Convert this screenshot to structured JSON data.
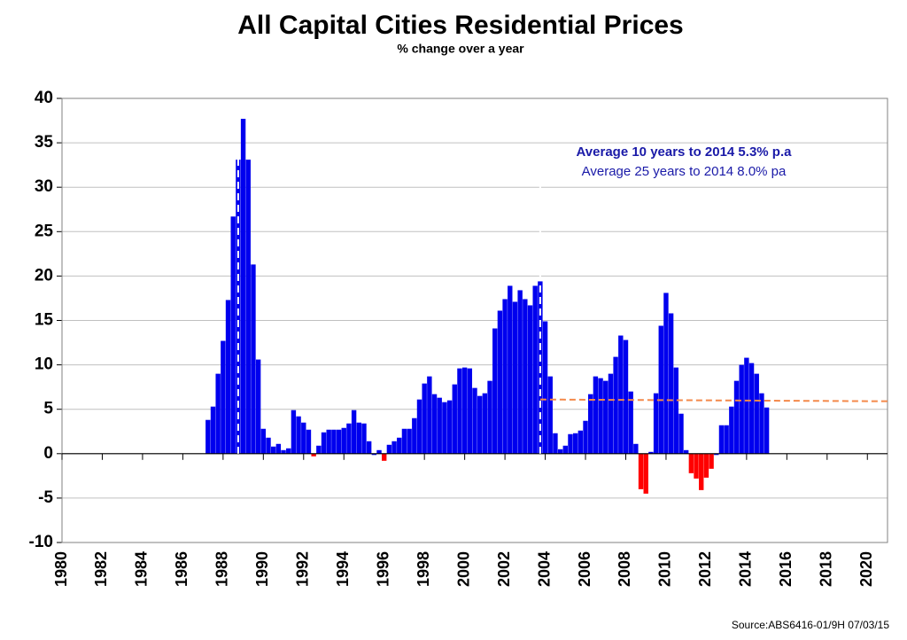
{
  "chart_data": {
    "type": "bar",
    "title": "All Capital Cities Residential Prices",
    "subtitle": "% change over a year",
    "annotations": [
      "Average 10 years to 2014  5.3% p.a",
      "Average 25 years to 2014  8.0% pa"
    ],
    "source": "Source:ABS6416-01/9H 07/03/15",
    "positive_color": "#0000ee",
    "negative_color": "#ff0000",
    "x": [
      1987.25,
      1987.5,
      1987.75,
      1988,
      1988.25,
      1988.5,
      1988.75,
      1989,
      1989.25,
      1989.5,
      1989.75,
      1990,
      1990.25,
      1990.5,
      1990.75,
      1991,
      1991.25,
      1991.5,
      1991.75,
      1992,
      1992.25,
      1992.5,
      1992.75,
      1993,
      1993.25,
      1993.5,
      1993.75,
      1994,
      1994.25,
      1994.5,
      1994.75,
      1995,
      1995.25,
      1995.5,
      1995.75,
      1996,
      1996.25,
      1996.5,
      1996.75,
      1997,
      1997.25,
      1997.5,
      1997.75,
      1998,
      1998.25,
      1998.5,
      1998.75,
      1999,
      1999.25,
      1999.5,
      1999.75,
      2000,
      2000.25,
      2000.5,
      2000.75,
      2001,
      2001.25,
      2001.5,
      2001.75,
      2002,
      2002.25,
      2002.5,
      2002.75,
      2003,
      2003.25,
      2003.5,
      2003.75,
      2004,
      2004.25,
      2004.5,
      2004.75,
      2005,
      2005.25,
      2005.5,
      2005.75,
      2006,
      2006.25,
      2006.5,
      2006.75,
      2007,
      2007.25,
      2007.5,
      2007.75,
      2008,
      2008.25,
      2008.5,
      2008.75,
      2009,
      2009.25,
      2009.5,
      2009.75,
      2010,
      2010.25,
      2010.5,
      2010.75,
      2011,
      2011.25,
      2011.5,
      2011.75,
      2012,
      2012.25,
      2012.5,
      2012.75,
      2013,
      2013.25,
      2013.5,
      2013.75,
      2014,
      2014.25,
      2014.5,
      2014.75,
      2015
    ],
    "values": [
      3.8,
      5.3,
      9,
      12.7,
      17.3,
      26.7,
      33.1,
      37.7,
      33.1,
      21.3,
      10.6,
      2.8,
      1.8,
      0.8,
      1.1,
      0.4,
      0.6,
      4.9,
      4.2,
      3.5,
      2.7,
      -0.3,
      0.9,
      2.4,
      2.7,
      2.7,
      2.7,
      2.9,
      3.4,
      4.9,
      3.5,
      3.4,
      1.4,
      0,
      0.4,
      -0.8,
      1,
      1.4,
      1.8,
      2.8,
      2.8,
      4,
      6.1,
      7.9,
      8.7,
      6.7,
      6.3,
      5.8,
      6,
      7.8,
      9.6,
      9.7,
      9.6,
      7.4,
      6.5,
      6.8,
      8.2,
      14.1,
      16.1,
      17.4,
      18.9,
      17.1,
      18.4,
      17.4,
      16.7,
      18.9,
      19.4,
      14.9,
      8.7,
      2.3,
      0.5,
      0.9,
      2.2,
      2.3,
      2.6,
      3.7,
      6.7,
      8.7,
      8.5,
      8.2,
      9,
      10.9,
      13.3,
      12.8,
      7,
      1.1,
      -4,
      -4.5,
      0.2,
      6.8,
      14.4,
      18.1,
      15.8,
      9.7,
      4.5,
      0.4,
      -2.2,
      -2.8,
      -4.1,
      -2.7,
      -1.7,
      0,
      3.2,
      3.2,
      5.3,
      8.2,
      10,
      10.8,
      10.2,
      9,
      6.8,
      5.2
    ],
    "reference_lines_x": [
      1988.75,
      2003.75
    ],
    "trend": {
      "x": [
        2003.75,
        2021
      ],
      "values": [
        6.1,
        5.9
      ],
      "color": "#f4894a"
    },
    "xlim": [
      1980,
      2021
    ],
    "xticks": [
      1980,
      1982,
      1984,
      1986,
      1988,
      1990,
      1992,
      1994,
      1996,
      1998,
      2000,
      2002,
      2004,
      2006,
      2008,
      2010,
      2012,
      2014,
      2016,
      2018,
      2020
    ],
    "ylim": [
      -10,
      40
    ],
    "yticks": [
      -10,
      -5,
      0,
      5,
      10,
      15,
      20,
      25,
      30,
      35,
      40
    ],
    "grid": true
  }
}
